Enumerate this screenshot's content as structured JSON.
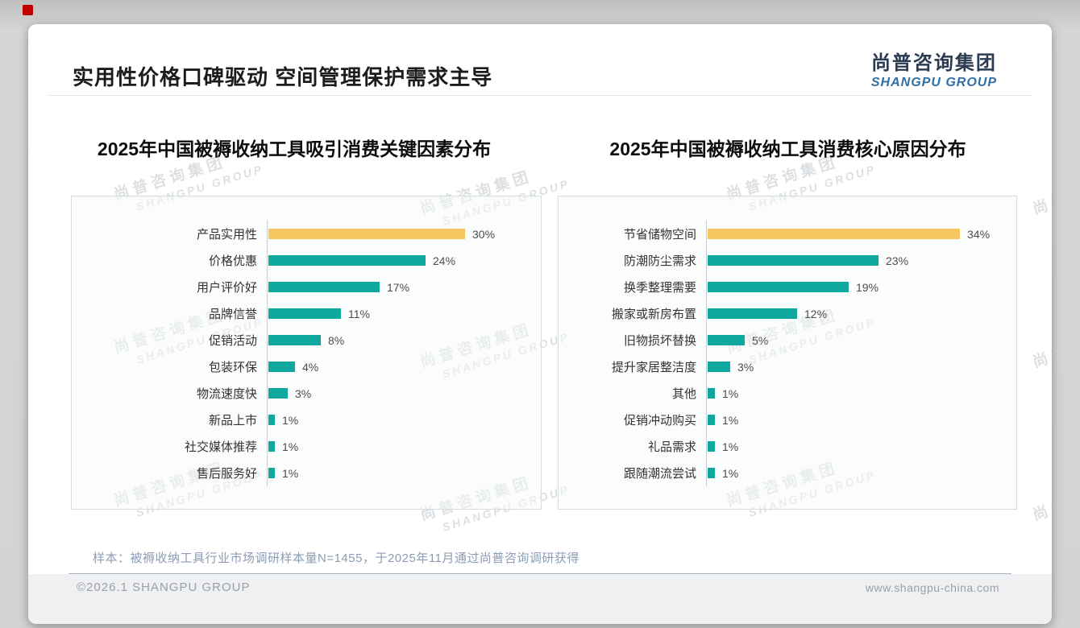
{
  "header": {
    "title": "实用性价格口碑驱动 空间管理保护需求主导",
    "logo_cn": "尚普咨询集团",
    "logo_en": "SHANGPU GROUP"
  },
  "watermark": {
    "line1": "尚普咨询集团",
    "line2": "SHANGPU GROUP"
  },
  "colors": {
    "highlight_bar": "#F6C65F",
    "bar": "#0FA8A0",
    "accent_red": "#C00000",
    "logo_cn": "#2B3B52",
    "logo_en": "#2F6FA7",
    "note_text": "#8B9CB3",
    "footer_text": "#9AA0A6"
  },
  "chart_data": [
    {
      "type": "bar",
      "orientation": "horizontal",
      "title": "2025年中国被褥收纳工具吸引消费关键因素分布",
      "categories": [
        "产品实用性",
        "价格优惠",
        "用户评价好",
        "品牌信誉",
        "促销活动",
        "包装环保",
        "物流速度快",
        "新品上市",
        "社交媒体推荐",
        "售后服务好"
      ],
      "values": [
        30,
        24,
        17,
        11,
        8,
        4,
        3,
        1,
        1,
        1
      ],
      "unit": "%",
      "axis_max": 42,
      "highlight_index": 0,
      "grid": false,
      "legend": null
    },
    {
      "type": "bar",
      "orientation": "horizontal",
      "title": "2025年中国被褥收纳工具消费核心原因分布",
      "categories": [
        "节省储物空间",
        "防潮防尘需求",
        "换季整理需要",
        "搬家或新房布置",
        "旧物损坏替换",
        "提升家居整洁度",
        "其他",
        "促销冲动购买",
        "礼品需求",
        "跟随潮流尝试"
      ],
      "values": [
        34,
        23,
        19,
        12,
        5,
        3,
        1,
        1,
        1,
        1
      ],
      "unit": "%",
      "axis_max": 42,
      "highlight_index": 0,
      "grid": false,
      "legend": null
    }
  ],
  "footnote": "样本：被褥收纳工具行业市场调研样本量N=1455，于2025年11月通过尚普咨询调研获得",
  "footer": {
    "copyright": "©2026.1 SHANGPU GROUP",
    "website": "www.shangpu-china.com"
  }
}
